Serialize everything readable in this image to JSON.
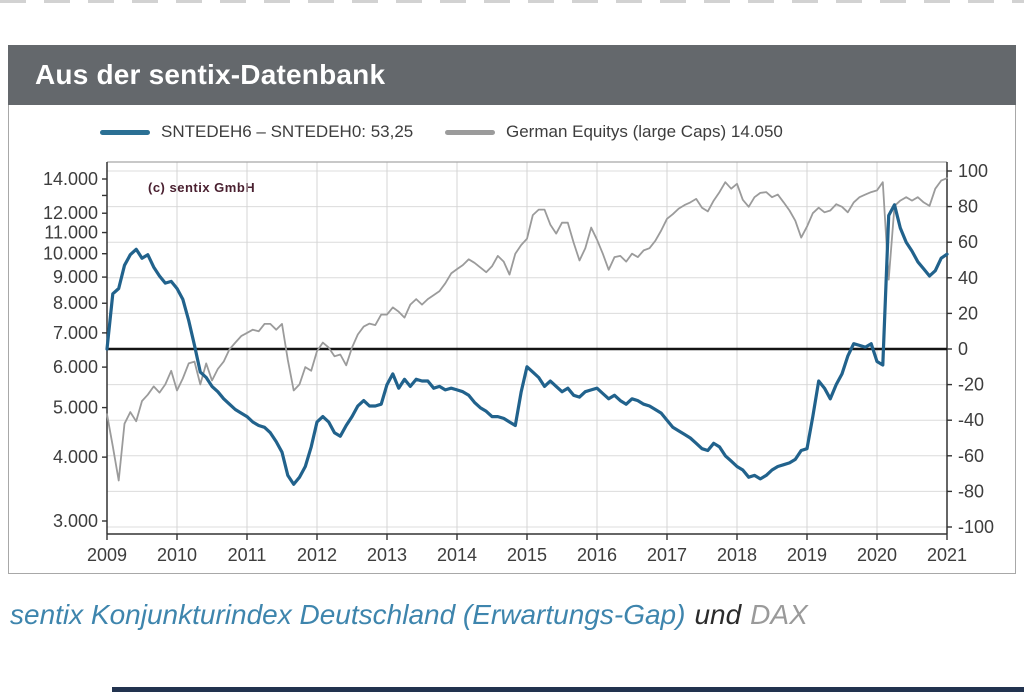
{
  "header": {
    "title": "Aus der sentix-Datenbank"
  },
  "legend": [
    {
      "label": "SNTEDEH6 – SNTEDEH0: 53,25",
      "color": "#2b7094"
    },
    {
      "label": "German Equitys (large Caps) 14.050",
      "color": "#9b9b9b"
    }
  ],
  "watermark": "(c) sentix GmbH",
  "caption": {
    "part1": "sentix Konjunkturindex Deutschland (Erwartungs-Gap)",
    "part2": "und",
    "part3": "DAX"
  },
  "chart_data": {
    "type": "line",
    "title": "Aus der sentix-Datenbank",
    "x_interval": "monthly",
    "x_start_year": 2009,
    "x_end_year": 2021,
    "x_tick_labels": [
      "2009",
      "2010",
      "2011",
      "2012",
      "2013",
      "2014",
      "2015",
      "2016",
      "2017",
      "2018",
      "2019",
      "2020",
      "2021"
    ],
    "left_axis": {
      "scale": "log",
      "min": 3000,
      "max": 14000,
      "tick_values": [
        14000,
        13000,
        12000,
        11000,
        10000,
        9000,
        8000,
        7000,
        6000,
        5000,
        4000,
        3000
      ],
      "tick_labels": [
        "14.000",
        "",
        "12.000",
        "11.000",
        "10.000",
        "9.000",
        "8.000",
        "7.000",
        "6.000",
        "5.000",
        "4.000",
        "3.000"
      ]
    },
    "right_axis": {
      "scale": "linear",
      "min": -100,
      "max": 100,
      "tick_values": [
        100,
        80,
        60,
        40,
        20,
        0,
        -20,
        -40,
        -60,
        -80,
        -100
      ],
      "tick_labels": [
        "100",
        "80",
        "60",
        "40",
        "20",
        "0",
        "-20",
        "-40",
        "-60",
        "-80",
        "-100"
      ]
    },
    "zero_line_value": 0,
    "grid": true,
    "legend_position": "top",
    "series": [
      {
        "name": "German Equitys (large Caps)",
        "current_value": "14.050",
        "axis": "left",
        "color": "#9b9b9b",
        "width": 1.8,
        "values": [
          4850,
          4200,
          3600,
          4650,
          4900,
          4700,
          5150,
          5300,
          5500,
          5350,
          5550,
          5900,
          5400,
          5700,
          6100,
          6150,
          5550,
          6100,
          5650,
          5950,
          6150,
          6500,
          6700,
          6900,
          7000,
          7100,
          7050,
          7290,
          7290,
          7100,
          7290,
          6200,
          5400,
          5550,
          6000,
          5900,
          6450,
          6700,
          6550,
          6300,
          6350,
          6050,
          6550,
          6950,
          7200,
          7300,
          7250,
          7600,
          7600,
          7850,
          7700,
          7500,
          7950,
          8150,
          7950,
          8150,
          8300,
          8450,
          8750,
          9150,
          9330,
          9500,
          9750,
          9600,
          9400,
          9200,
          9450,
          9900,
          9650,
          9100,
          10000,
          10400,
          10700,
          11900,
          12200,
          12200,
          11400,
          10950,
          11500,
          11500,
          10500,
          9700,
          10250,
          11250,
          10650,
          10000,
          9300,
          9850,
          9900,
          9650,
          10000,
          9850,
          10150,
          10250,
          10600,
          11100,
          11700,
          11950,
          12250,
          12450,
          12600,
          12800,
          12300,
          12100,
          12700,
          13200,
          13800,
          13400,
          13700,
          12750,
          12350,
          12900,
          13150,
          13200,
          12900,
          13050,
          12600,
          12150,
          11600,
          10750,
          11300,
          12000,
          12300,
          12050,
          12150,
          12500,
          12350,
          12050,
          12600,
          12900,
          13050,
          13200,
          13300,
          13800,
          8900,
          12400,
          12700,
          12900,
          12700,
          12900,
          12600,
          12400,
          13400,
          13900,
          14050
        ]
      },
      {
        "name": "SNTEDEH6 – SNTEDEH0",
        "current_value": "53,25",
        "axis": "right",
        "color": "#21628c",
        "width": 3.2,
        "values": [
          0,
          31,
          34,
          47,
          53,
          56,
          51,
          53,
          46,
          41,
          37,
          38,
          34,
          28,
          16,
          2,
          -13,
          -16,
          -21,
          -24,
          -28,
          -31,
          -34,
          -36,
          -38,
          -41,
          -43,
          -44,
          -47,
          -52,
          -58,
          -71,
          -76,
          -72,
          -66,
          -55,
          -41,
          -38,
          -41,
          -47,
          -49,
          -43,
          -38,
          -32,
          -29,
          -32,
          -32,
          -31,
          -20,
          -14,
          -22,
          -17,
          -21,
          -17,
          -18,
          -18,
          -22,
          -21,
          -23,
          -22,
          -23,
          -24,
          -26,
          -30,
          -33,
          -35,
          -38,
          -38,
          -39,
          -41,
          -43,
          -24,
          -10,
          -13,
          -16,
          -21,
          -18,
          -21,
          -24,
          -22,
          -26,
          -27,
          -24,
          -23,
          -22,
          -25,
          -28,
          -26,
          -29,
          -31,
          -28,
          -29,
          -31,
          -32,
          -34,
          -36,
          -40,
          -44,
          -46,
          -48,
          -50,
          -53,
          -56,
          -57,
          -53,
          -55,
          -60,
          -63,
          -66,
          -68,
          -72,
          -71,
          -73,
          -71,
          -68,
          -66,
          -65,
          -64,
          -62,
          -57,
          -56,
          -38,
          -18,
          -22,
          -28,
          -20,
          -14,
          -4,
          3,
          2,
          1,
          3,
          -7,
          -9,
          75,
          81,
          68,
          60,
          55,
          49,
          45,
          41,
          44,
          51,
          53.25
        ]
      }
    ]
  }
}
